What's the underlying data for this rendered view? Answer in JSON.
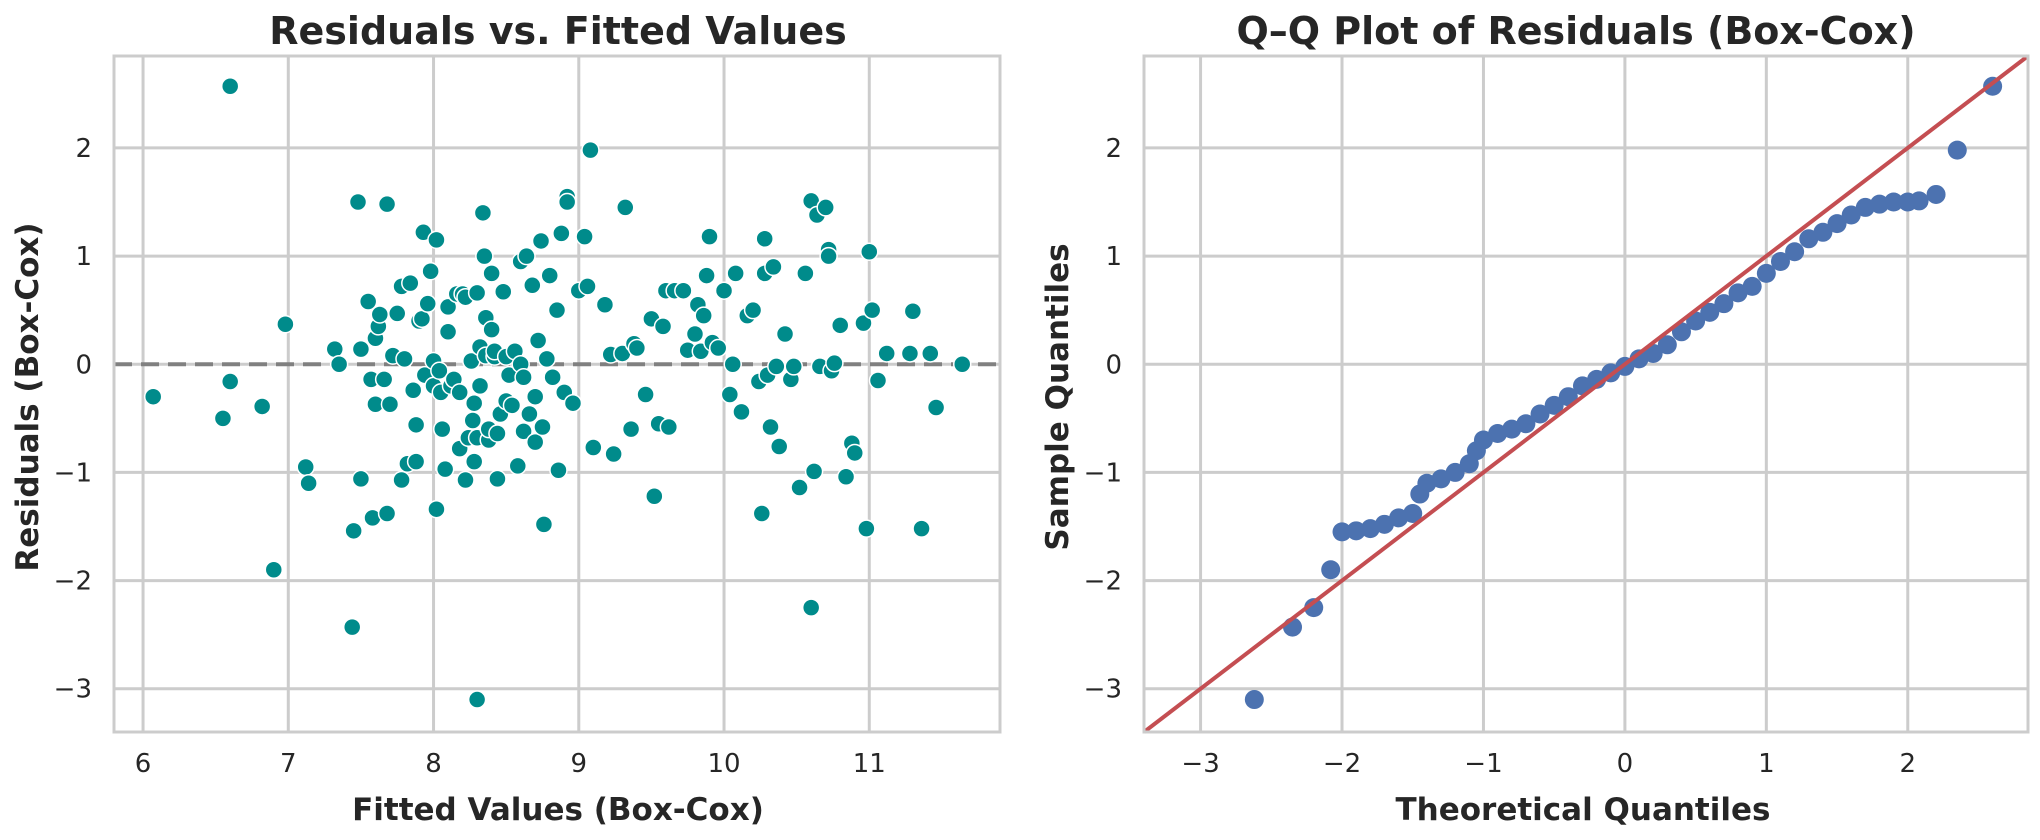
{
  "colors": {
    "grid": "#cccccc",
    "spine": "#cccccc",
    "text": "#262626",
    "residual_points": "#008b8b",
    "zero_line": "#808080",
    "qq_points": "#4c72b0",
    "reference_line": "#c44e52"
  },
  "chart_data": [
    {
      "type": "scatter",
      "title": "Residuals vs. Fitted Values",
      "xlabel": "Fitted Values (Box-Cox)",
      "ylabel": "Residuals (Box-Cox)",
      "xlim": [
        5.8,
        11.9
      ],
      "ylim": [
        -3.4,
        2.85
      ],
      "xticks": [
        6,
        7,
        8,
        9,
        10,
        11
      ],
      "yticks": [
        2,
        1,
        0,
        -1,
        -2,
        -3
      ],
      "ytick_labels": [
        "2",
        "1",
        "0",
        "−1",
        "−2",
        "−3"
      ],
      "grid": true,
      "reference_line": {
        "y": 0,
        "style": "dashed"
      },
      "points": [
        [
          6.07,
          -0.3
        ],
        [
          6.55,
          -0.5
        ],
        [
          6.6,
          2.57
        ],
        [
          6.6,
          -0.16
        ],
        [
          6.82,
          -0.39
        ],
        [
          6.9,
          -1.9
        ],
        [
          6.98,
          0.37
        ],
        [
          7.12,
          -0.95
        ],
        [
          7.14,
          -1.1
        ],
        [
          7.32,
          0.14
        ],
        [
          7.35,
          0.0
        ],
        [
          7.44,
          -2.43
        ],
        [
          7.45,
          -1.54
        ],
        [
          7.48,
          1.5
        ],
        [
          7.5,
          -1.06
        ],
        [
          7.5,
          0.14
        ],
        [
          7.55,
          0.58
        ],
        [
          7.57,
          -0.14
        ],
        [
          7.58,
          -1.42
        ],
        [
          7.6,
          0.24
        ],
        [
          7.6,
          -0.37
        ],
        [
          7.62,
          0.35
        ],
        [
          7.63,
          0.46
        ],
        [
          7.66,
          -0.14
        ],
        [
          7.68,
          1.48
        ],
        [
          7.68,
          -1.38
        ],
        [
          7.7,
          -0.37
        ],
        [
          7.72,
          0.08
        ],
        [
          7.75,
          0.47
        ],
        [
          7.78,
          -1.07
        ],
        [
          7.78,
          0.72
        ],
        [
          7.8,
          0.05
        ],
        [
          7.82,
          -0.92
        ],
        [
          7.84,
          0.75
        ],
        [
          7.86,
          -0.24
        ],
        [
          7.88,
          -0.56
        ],
        [
          7.88,
          -0.9
        ],
        [
          7.9,
          0.4
        ],
        [
          7.92,
          0.42
        ],
        [
          7.93,
          1.22
        ],
        [
          7.94,
          -0.1
        ],
        [
          7.96,
          0.56
        ],
        [
          7.98,
          0.86
        ],
        [
          8.0,
          -0.2
        ],
        [
          8.0,
          0.03
        ],
        [
          8.02,
          1.15
        ],
        [
          8.02,
          -1.34
        ],
        [
          8.04,
          -0.06
        ],
        [
          8.05,
          -0.26
        ],
        [
          8.06,
          -0.6
        ],
        [
          8.08,
          -0.97
        ],
        [
          8.1,
          0.53
        ],
        [
          8.1,
          0.3
        ],
        [
          8.12,
          -0.2
        ],
        [
          8.14,
          -0.14
        ],
        [
          8.16,
          0.65
        ],
        [
          8.18,
          -0.26
        ],
        [
          8.18,
          -0.78
        ],
        [
          8.2,
          0.65
        ],
        [
          8.22,
          -1.07
        ],
        [
          8.22,
          0.62
        ],
        [
          8.24,
          -0.68
        ],
        [
          8.26,
          0.03
        ],
        [
          8.27,
          -0.52
        ],
        [
          8.28,
          -0.9
        ],
        [
          8.28,
          -0.36
        ],
        [
          8.3,
          0.66
        ],
        [
          8.3,
          -3.1
        ],
        [
          8.3,
          -0.68
        ],
        [
          8.32,
          -0.2
        ],
        [
          8.32,
          0.16
        ],
        [
          8.34,
          1.4
        ],
        [
          8.35,
          1.0
        ],
        [
          8.36,
          0.08
        ],
        [
          8.36,
          0.43
        ],
        [
          8.38,
          -0.7
        ],
        [
          8.38,
          -0.6
        ],
        [
          8.4,
          0.84
        ],
        [
          8.4,
          0.32
        ],
        [
          8.42,
          0.07
        ],
        [
          8.42,
          0.12
        ],
        [
          8.44,
          -1.06
        ],
        [
          8.44,
          -0.64
        ],
        [
          8.46,
          -0.46
        ],
        [
          8.48,
          0.67
        ],
        [
          8.5,
          0.07
        ],
        [
          8.5,
          -0.34
        ],
        [
          8.52,
          -0.1
        ],
        [
          8.54,
          -0.38
        ],
        [
          8.56,
          0.12
        ],
        [
          8.58,
          -0.94
        ],
        [
          8.6,
          0.95
        ],
        [
          8.6,
          0.0
        ],
        [
          8.62,
          -0.12
        ],
        [
          8.62,
          -0.62
        ],
        [
          8.64,
          1.0
        ],
        [
          8.66,
          -0.46
        ],
        [
          8.68,
          0.73
        ],
        [
          8.7,
          -0.3
        ],
        [
          8.7,
          -0.72
        ],
        [
          8.72,
          0.22
        ],
        [
          8.74,
          1.14
        ],
        [
          8.75,
          -0.58
        ],
        [
          8.76,
          -1.48
        ],
        [
          8.78,
          0.05
        ],
        [
          8.8,
          0.82
        ],
        [
          8.82,
          -0.12
        ],
        [
          8.85,
          0.5
        ],
        [
          8.86,
          -0.98
        ],
        [
          8.88,
          1.21
        ],
        [
          8.9,
          -0.26
        ],
        [
          8.92,
          1.55
        ],
        [
          8.92,
          1.5
        ],
        [
          8.96,
          -0.36
        ],
        [
          9.0,
          0.68
        ],
        [
          9.04,
          1.18
        ],
        [
          9.06,
          0.72
        ],
        [
          9.08,
          1.98
        ],
        [
          9.1,
          -0.77
        ],
        [
          9.18,
          0.55
        ],
        [
          9.22,
          0.09
        ],
        [
          9.24,
          -0.83
        ],
        [
          9.3,
          0.1
        ],
        [
          9.32,
          1.45
        ],
        [
          9.36,
          -0.6
        ],
        [
          9.38,
          0.19
        ],
        [
          9.4,
          0.15
        ],
        [
          9.46,
          -0.28
        ],
        [
          9.5,
          0.42
        ],
        [
          9.52,
          -1.22
        ],
        [
          9.55,
          -0.55
        ],
        [
          9.58,
          0.35
        ],
        [
          9.6,
          0.68
        ],
        [
          9.62,
          -0.58
        ],
        [
          9.66,
          0.68
        ],
        [
          9.72,
          0.68
        ],
        [
          9.75,
          0.13
        ],
        [
          9.8,
          0.28
        ],
        [
          9.82,
          0.55
        ],
        [
          9.84,
          0.12
        ],
        [
          9.86,
          0.45
        ],
        [
          9.88,
          0.82
        ],
        [
          9.9,
          1.18
        ],
        [
          9.92,
          0.2
        ],
        [
          9.96,
          0.15
        ],
        [
          10.0,
          0.68
        ],
        [
          10.04,
          -0.28
        ],
        [
          10.06,
          0.0
        ],
        [
          10.08,
          0.84
        ],
        [
          10.12,
          -0.44
        ],
        [
          10.16,
          0.45
        ],
        [
          10.2,
          0.5
        ],
        [
          10.24,
          -0.16
        ],
        [
          10.26,
          -1.38
        ],
        [
          10.28,
          0.84
        ],
        [
          10.28,
          1.16
        ],
        [
          10.3,
          -0.1
        ],
        [
          10.32,
          -0.58
        ],
        [
          10.34,
          0.9
        ],
        [
          10.36,
          -0.02
        ],
        [
          10.38,
          -0.76
        ],
        [
          10.42,
          0.28
        ],
        [
          10.46,
          -0.14
        ],
        [
          10.48,
          -0.02
        ],
        [
          10.52,
          -1.14
        ],
        [
          10.56,
          0.84
        ],
        [
          10.6,
          1.51
        ],
        [
          10.6,
          -2.25
        ],
        [
          10.62,
          -0.99
        ],
        [
          10.64,
          1.38
        ],
        [
          10.66,
          -0.02
        ],
        [
          10.7,
          1.45
        ],
        [
          10.72,
          1.06
        ],
        [
          10.72,
          1.0
        ],
        [
          10.74,
          -0.06
        ],
        [
          10.76,
          0.01
        ],
        [
          10.8,
          0.36
        ],
        [
          10.84,
          -1.04
        ],
        [
          10.88,
          -0.73
        ],
        [
          10.9,
          -0.82
        ],
        [
          10.96,
          0.38
        ],
        [
          10.98,
          -1.52
        ],
        [
          11.0,
          1.04
        ],
        [
          11.02,
          0.5
        ],
        [
          11.06,
          -0.15
        ],
        [
          11.12,
          0.1
        ],
        [
          11.28,
          0.1
        ],
        [
          11.3,
          0.49
        ],
        [
          11.36,
          -1.52
        ],
        [
          11.42,
          0.1
        ],
        [
          11.46,
          -0.4
        ],
        [
          11.64,
          0.0
        ]
      ]
    },
    {
      "type": "scatter",
      "title": "Q–Q Plot of Residuals (Box-Cox)",
      "xlabel": "Theoretical Quantiles",
      "ylabel": "Sample Quantiles",
      "xlim": [
        -3.4,
        2.85
      ],
      "ylim": [
        -3.4,
        2.85
      ],
      "xticks": [
        -3,
        -2,
        -1,
        0,
        1,
        2
      ],
      "xtick_labels": [
        "−3",
        "−2",
        "−1",
        "0",
        "1",
        "2"
      ],
      "yticks": [
        2,
        1,
        0,
        -1,
        -2,
        -3
      ],
      "ytick_labels": [
        "2",
        "1",
        "0",
        "−1",
        "−2",
        "−3"
      ],
      "grid": true,
      "reference_line": {
        "slope": 1,
        "intercept": 0
      },
      "quantile_points": [
        [
          -2.62,
          -3.1
        ],
        [
          -2.35,
          -2.43
        ],
        [
          -2.2,
          -2.25
        ],
        [
          -2.08,
          -1.9
        ],
        [
          -2.0,
          -1.55
        ],
        [
          -1.9,
          -1.54
        ],
        [
          -1.8,
          -1.52
        ],
        [
          -1.7,
          -1.48
        ],
        [
          -1.6,
          -1.42
        ],
        [
          -1.5,
          -1.38
        ],
        [
          -1.45,
          -1.2
        ],
        [
          -1.4,
          -1.1
        ],
        [
          -1.3,
          -1.06
        ],
        [
          -1.2,
          -1.0
        ],
        [
          -1.1,
          -0.92
        ],
        [
          -1.05,
          -0.8
        ],
        [
          -1.0,
          -0.7
        ],
        [
          -0.9,
          -0.64
        ],
        [
          -0.8,
          -0.6
        ],
        [
          -0.7,
          -0.55
        ],
        [
          -0.6,
          -0.46
        ],
        [
          -0.5,
          -0.38
        ],
        [
          -0.4,
          -0.3
        ],
        [
          -0.3,
          -0.2
        ],
        [
          -0.2,
          -0.14
        ],
        [
          -0.1,
          -0.08
        ],
        [
          0.0,
          -0.02
        ],
        [
          0.1,
          0.05
        ],
        [
          0.2,
          0.1
        ],
        [
          0.3,
          0.18
        ],
        [
          0.4,
          0.3
        ],
        [
          0.5,
          0.4
        ],
        [
          0.6,
          0.48
        ],
        [
          0.7,
          0.56
        ],
        [
          0.8,
          0.66
        ],
        [
          0.9,
          0.72
        ],
        [
          1.0,
          0.84
        ],
        [
          1.1,
          0.95
        ],
        [
          1.2,
          1.04
        ],
        [
          1.3,
          1.16
        ],
        [
          1.4,
          1.22
        ],
        [
          1.5,
          1.3
        ],
        [
          1.6,
          1.38
        ],
        [
          1.7,
          1.45
        ],
        [
          1.8,
          1.48
        ],
        [
          1.9,
          1.5
        ],
        [
          2.0,
          1.5
        ],
        [
          2.08,
          1.51
        ],
        [
          2.2,
          1.57
        ],
        [
          2.35,
          1.98
        ],
        [
          2.6,
          2.57
        ]
      ]
    }
  ]
}
